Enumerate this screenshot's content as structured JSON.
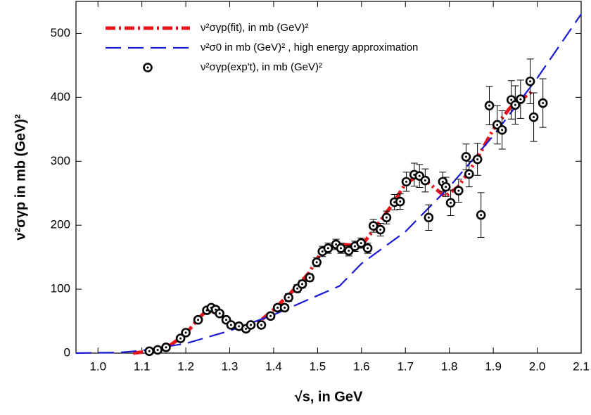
{
  "chart_data": {
    "type": "line",
    "xlabel": "√s, in GeV",
    "ylabel": "ν²σγp in mb (GeV)²",
    "xlim": [
      0.95,
      2.1
    ],
    "ylim": [
      0,
      550
    ],
    "xticks": [
      {
        "value": 1.0,
        "label": "1.0"
      },
      1.1,
      1.2,
      1.3,
      1.4,
      1.5,
      1.6,
      1.7,
      1.8,
      1.9,
      {
        "value": 2.0,
        "label": "2.0"
      },
      2.1
    ],
    "yticks": [
      0,
      100,
      200,
      300,
      400,
      500
    ],
    "legend": "upper-left",
    "series": [
      {
        "name": "ν²σγp(fit), in mb (GeV)²",
        "type": "line",
        "style": "dash-dot",
        "color": "#e8141e",
        "x": [
          1.08,
          1.12,
          1.16,
          1.2,
          1.23,
          1.25,
          1.27,
          1.3,
          1.33,
          1.36,
          1.4,
          1.44,
          1.48,
          1.51,
          1.55,
          1.6,
          1.63,
          1.67,
          1.7,
          1.73,
          1.76,
          1.79,
          1.82,
          1.86,
          1.9,
          1.94,
          1.99
        ],
        "values": [
          0,
          3,
          10,
          30,
          55,
          68,
          62,
          45,
          40,
          45,
          68,
          95,
          125,
          160,
          170,
          168,
          195,
          232,
          265,
          278,
          262,
          245,
          260,
          300,
          350,
          385,
          410
        ]
      },
      {
        "name": "ν²σ0 in mb (GeV)² , high energy approximation",
        "type": "line",
        "style": "dashed",
        "color": "#1a1ad6",
        "x": [
          0.95,
          1.05,
          1.1,
          1.2,
          1.3,
          1.4,
          1.5,
          1.55,
          1.6,
          1.7,
          1.8,
          1.9,
          2.0,
          2.1
        ],
        "values": [
          0,
          1,
          4,
          15,
          35,
          60,
          90,
          105,
          140,
          190,
          260,
          340,
          430,
          530
        ]
      },
      {
        "name": "ν²σγp(exp't), in mb (GeV)²",
        "type": "scatter",
        "color": "#000000",
        "x": [
          1.117,
          1.136,
          1.155,
          1.188,
          1.2,
          1.228,
          1.248,
          1.258,
          1.268,
          1.277,
          1.292,
          1.303,
          1.321,
          1.337,
          1.348,
          1.372,
          1.393,
          1.409,
          1.425,
          1.434,
          1.454,
          1.465,
          1.482,
          1.498,
          1.511,
          1.524,
          1.542,
          1.553,
          1.571,
          1.585,
          1.599,
          1.614,
          1.627,
          1.643,
          1.657,
          1.675,
          1.688,
          1.702,
          1.72,
          1.732,
          1.745,
          1.753,
          1.785,
          1.792,
          1.803,
          1.821,
          1.838,
          1.845,
          1.864,
          1.872,
          1.891,
          1.909,
          1.92,
          1.941,
          1.95,
          1.962,
          1.984,
          1.992,
          2.013
        ],
        "values": [
          3,
          5,
          9,
          23,
          32,
          52,
          67,
          71,
          68,
          62,
          52,
          44,
          42,
          38,
          44,
          44,
          58,
          71,
          71,
          87,
          101,
          108,
          118,
          142,
          159,
          164,
          170,
          164,
          160,
          167,
          172,
          164,
          199,
          193,
          212,
          236,
          237,
          268,
          279,
          277,
          270,
          212,
          268,
          260,
          235,
          254,
          307,
          280,
          303,
          216,
          387,
          357,
          349,
          396,
          388,
          397,
          425,
          369,
          391
        ],
        "errors": [
          2,
          2,
          3,
          3,
          3,
          4,
          4,
          4,
          4,
          4,
          4,
          4,
          4,
          4,
          4,
          4,
          5,
          5,
          5,
          6,
          6,
          6,
          6,
          7,
          8,
          8,
          8,
          8,
          8,
          8,
          8,
          8,
          10,
          10,
          10,
          12,
          12,
          15,
          18,
          18,
          18,
          20,
          15,
          15,
          20,
          18,
          20,
          20,
          25,
          35,
          30,
          30,
          30,
          30,
          30,
          30,
          35,
          38,
          38
        ]
      }
    ]
  }
}
